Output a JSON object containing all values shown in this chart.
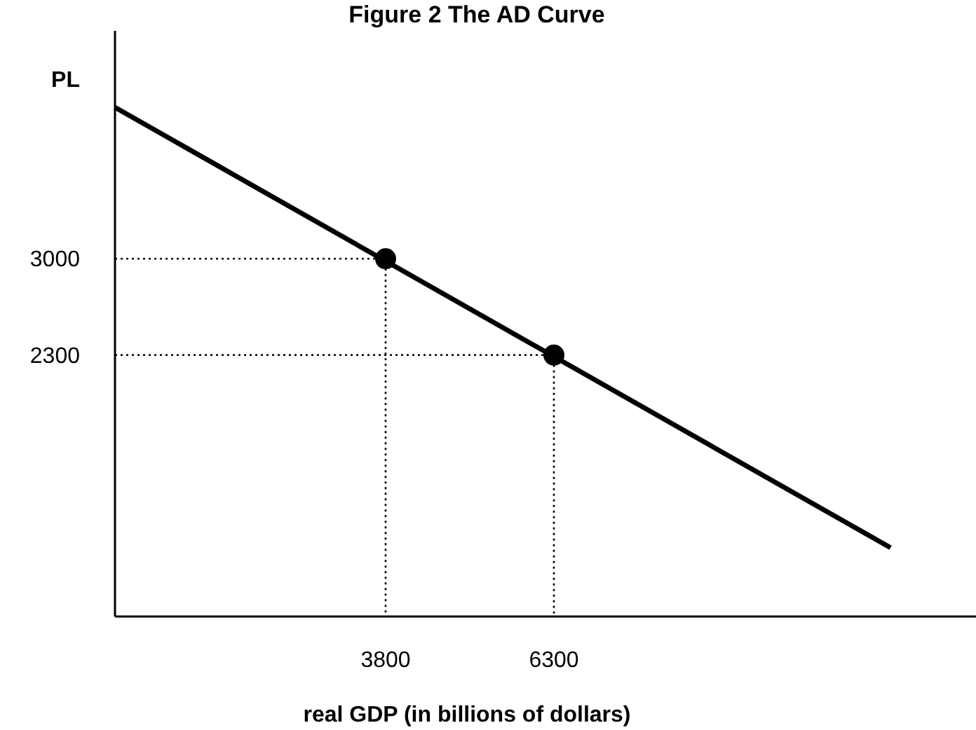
{
  "chart_data": {
    "type": "line",
    "title": "Figure 2 The AD Curve",
    "xlabel": "real GDP (in billions of dollars)",
    "ylabel": "PL",
    "xlim": [
      -220,
      12570
    ],
    "ylim": [
      400,
      4656
    ],
    "xticks": [
      3800,
      6300
    ],
    "yticks": [
      2300,
      3000
    ],
    "grid": false,
    "series": [
      {
        "color": "#000000",
        "x": [
          -220,
          11300
        ],
        "values": [
          4100,
          900
        ],
        "line_style": "solid",
        "marker": "none"
      },
      {
        "color": "#000000",
        "x": [
          -220,
          3800,
          3800
        ],
        "values": [
          3000,
          3000,
          400
        ],
        "line_style": "dotted",
        "marker": "none"
      },
      {
        "color": "#000000",
        "x": [
          -220,
          6300,
          6300
        ],
        "values": [
          2300,
          2300,
          400
        ],
        "line_style": "dotted",
        "marker": "none"
      },
      {
        "type": "scatter",
        "color": "#000000",
        "x": [
          3800,
          6300
        ],
        "values": [
          3000,
          2300
        ],
        "marker": "circle"
      }
    ]
  }
}
